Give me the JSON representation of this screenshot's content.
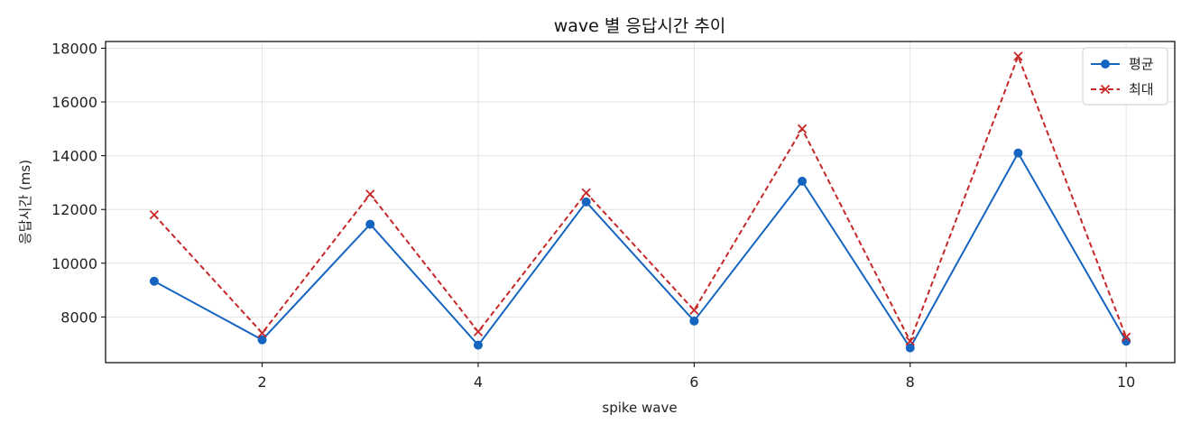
{
  "chart_data": {
    "type": "line",
    "title": "wave 별 응답시간 추이",
    "xlabel": "spike wave",
    "ylabel": "응답시간 (ms)",
    "x": [
      1,
      2,
      3,
      4,
      5,
      6,
      7,
      8,
      9,
      10
    ],
    "xlim": [
      0.55,
      10.45
    ],
    "ylim": [
      6300,
      18250
    ],
    "xticks": [
      2,
      4,
      6,
      8,
      10
    ],
    "yticks": [
      8000,
      10000,
      12000,
      14000,
      16000,
      18000
    ],
    "grid": true,
    "legend_position": "top-right",
    "series": [
      {
        "name": "평균",
        "values": [
          9330,
          7150,
          11450,
          6950,
          12280,
          7850,
          13050,
          6850,
          14100,
          7100
        ],
        "color": "#1565c0",
        "line_style": "solid",
        "marker": "circle"
      },
      {
        "name": "최대",
        "values": [
          11800,
          7400,
          12570,
          7450,
          12620,
          8250,
          15000,
          7100,
          17700,
          7250
        ],
        "color": "#c62828",
        "line_style": "dashed",
        "marker": "x"
      }
    ]
  }
}
